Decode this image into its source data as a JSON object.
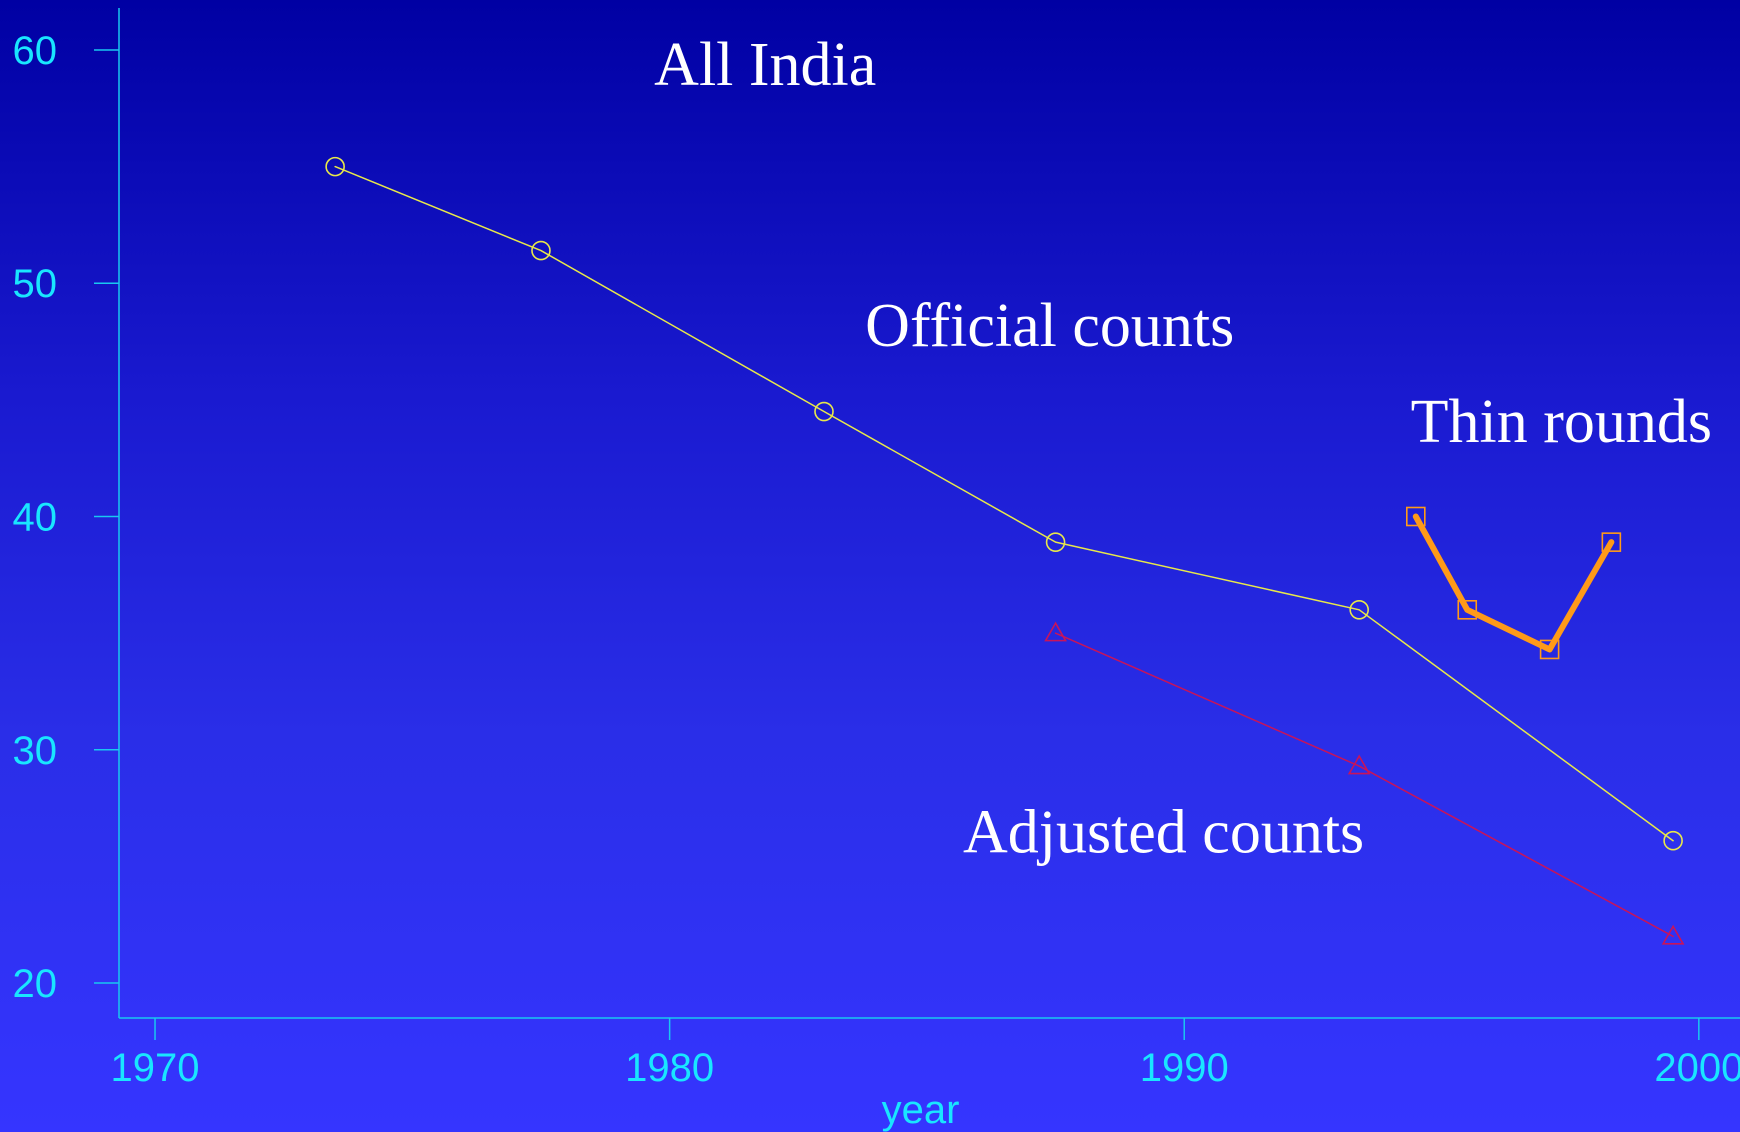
{
  "chart_data": {
    "type": "line",
    "xlabel": "year",
    "ylabel": "",
    "xlim": [
      1969.3,
      2000.8
    ],
    "ylim": [
      18.5,
      61.8
    ],
    "xticks": [
      1970,
      1980,
      1990,
      2000
    ],
    "yticks": [
      20,
      30,
      40,
      50,
      60
    ],
    "grid": false,
    "annotations": [
      {
        "text": "All India",
        "x": 1979.7,
        "y": 58.5
      },
      {
        "text": "Official counts",
        "x": 1983.8,
        "y": 47.3
      },
      {
        "text": "Thin rounds",
        "x": 1994.4,
        "y": 43.2
      },
      {
        "text": "Adjusted counts",
        "x": 1985.7,
        "y": 25.6
      }
    ],
    "series": [
      {
        "color": "#e8e84a",
        "marker": "circle",
        "line_width": 1.5,
        "x": [
          1973.5,
          1977.5,
          1983.0,
          1987.5,
          1993.4,
          1999.5
        ],
        "y": [
          55.0,
          51.4,
          44.5,
          38.9,
          36.0,
          26.1
        ]
      },
      {
        "color": "#c8145a",
        "marker": "triangle",
        "line_width": 1.5,
        "x": [
          1987.5,
          1993.4,
          1999.5
        ],
        "y": [
          35.0,
          29.3,
          22.0
        ]
      },
      {
        "color": "#ff9a18",
        "marker": "square",
        "line_width": 6,
        "x": [
          1994.5,
          1995.5,
          1997.1,
          1998.3
        ],
        "y": [
          40.0,
          36.0,
          34.3,
          38.9
        ]
      }
    ]
  }
}
